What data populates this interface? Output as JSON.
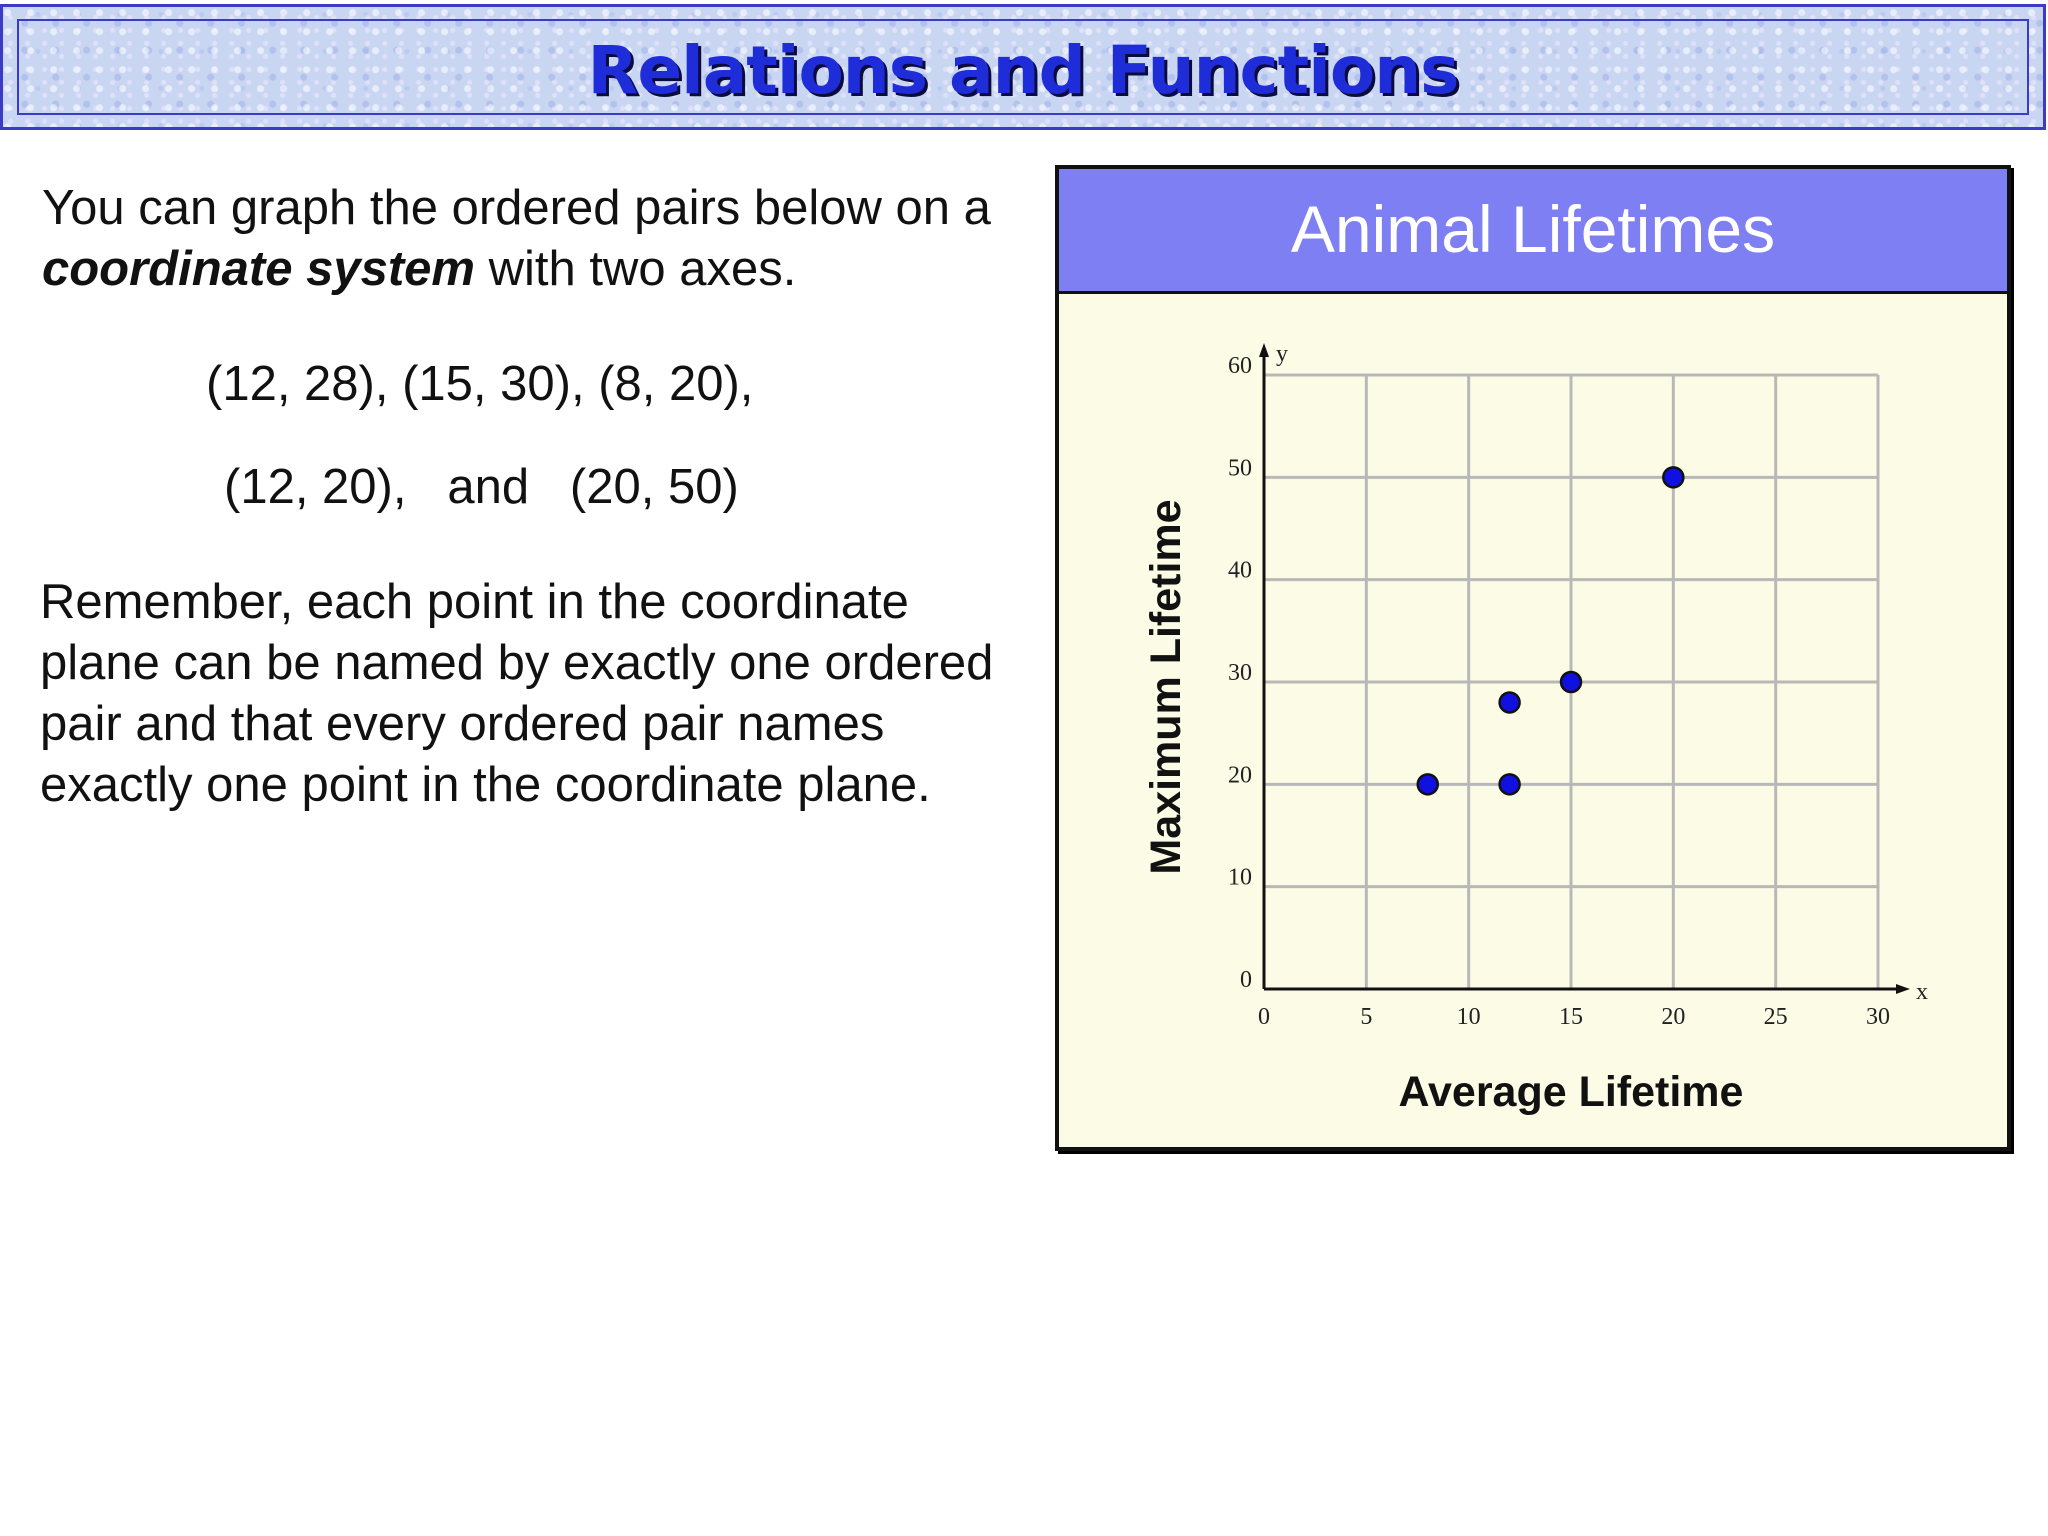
{
  "slide": {
    "title": "Relations and Functions",
    "intro_part1": "You can graph the ordered pairs below on a ",
    "intro_bold": "coordinate system",
    "intro_part2": " with two axes.",
    "pairs_line1": "(12, 28), (15, 30), (8, 20),",
    "pairs_line2": "(12, 20),   and   (20, 50)",
    "remember": "Remember, each point in the coordinate plane can be named by exactly one ordered pair and that every ordered pair names exactly one point in the coordinate plane."
  },
  "chart_data": {
    "type": "scatter",
    "title": "Animal Lifetimes",
    "xlabel": "Average Lifetime",
    "ylabel": "Maximum Lifetime",
    "x_axis_letter": "x",
    "y_axis_letter": "y",
    "xlim": [
      0,
      30
    ],
    "ylim": [
      0,
      60
    ],
    "x_ticks": [
      0,
      5,
      10,
      15,
      20,
      25,
      30
    ],
    "y_ticks": [
      0,
      10,
      20,
      30,
      40,
      50,
      60
    ],
    "grid": true,
    "point_color": "#1010e0",
    "points": [
      {
        "x": 12,
        "y": 28
      },
      {
        "x": 15,
        "y": 30
      },
      {
        "x": 8,
        "y": 20
      },
      {
        "x": 12,
        "y": 20
      },
      {
        "x": 20,
        "y": 50
      }
    ]
  }
}
